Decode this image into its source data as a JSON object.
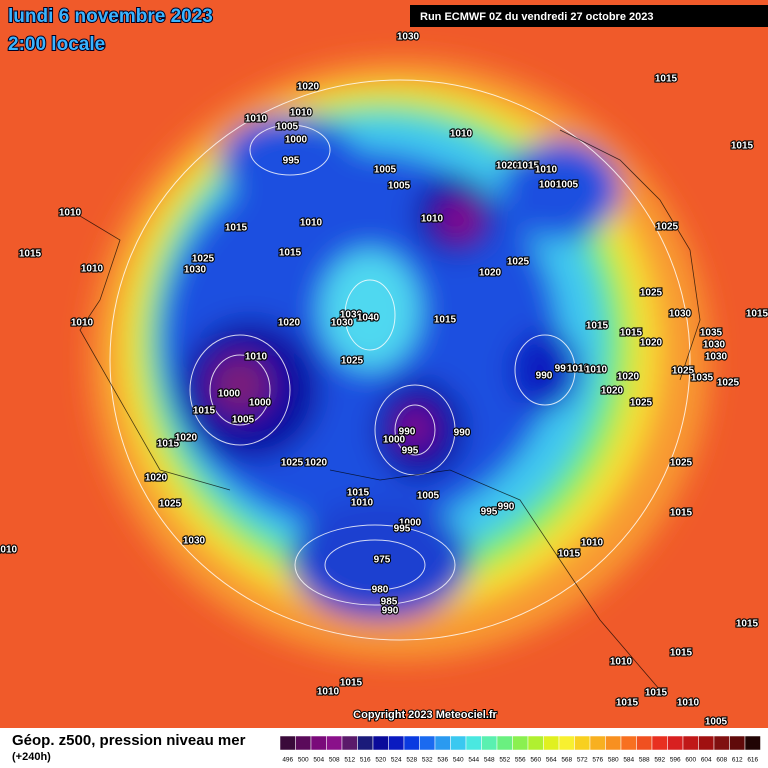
{
  "header": {
    "date": "lundi 6 novembre 2023",
    "time": "2:00 locale",
    "run": "Run ECMWF 0Z du vendredi 27 octobre 2023"
  },
  "copyright": "Copyright 2023 Meteociel.fr",
  "footer": {
    "title": "Géop. z500, pression niveau mer",
    "lead": "(+240h)"
  },
  "isobar_labels": [
    "1020",
    "1030",
    "1015",
    "1015",
    "1010",
    "1010",
    "1005",
    "1000",
    "995",
    "1010",
    "1005",
    "1005",
    "1020",
    "1015",
    "1010",
    "1005",
    "1005",
    "1010",
    "1010",
    "1015",
    "1015",
    "1025",
    "1030",
    "1010",
    "1015",
    "1010",
    "1010",
    "1025",
    "1020",
    "1025",
    "1025",
    "1030",
    "1035",
    "1030",
    "1030",
    "1025",
    "1035",
    "1025",
    "1015",
    "1015",
    "1015",
    "1020",
    "1020",
    "1020",
    "1025",
    "1030",
    "1040",
    "1030",
    "1015",
    "1020",
    "1025",
    "1010",
    "990",
    "995",
    "1010",
    "1010",
    "1000",
    "1000",
    "1015",
    "1005",
    "1015",
    "1020",
    "1020",
    "1025",
    "1020",
    "990",
    "1000",
    "995",
    "990",
    "1025",
    "1015",
    "1010",
    "1005",
    "995",
    "990",
    "1025",
    "1030",
    "1010",
    "1015",
    "1010",
    "1015",
    "1000",
    "995",
    "975",
    "980",
    "985",
    "990",
    "1015",
    "1010",
    "1015",
    "1015",
    "1010",
    "1015",
    "1015",
    "1010",
    "1005"
  ],
  "colorbar": {
    "labels": [
      496,
      500,
      504,
      508,
      512,
      516,
      520,
      524,
      528,
      532,
      536,
      540,
      544,
      548,
      552,
      556,
      560,
      564,
      568,
      572,
      576,
      580,
      584,
      588,
      592,
      596,
      600,
      604,
      608,
      612,
      616
    ],
    "colors": [
      "#3a0a3a",
      "#5a0a5a",
      "#7a0a7a",
      "#8a108a",
      "#5a1a6a",
      "#1a1a7a",
      "#0a0a9a",
      "#0a1ac0",
      "#0a3ae0",
      "#1a6af0",
      "#2a9af0",
      "#3ac8f0",
      "#4ae8e0",
      "#5af0b0",
      "#6af080",
      "#8af050",
      "#b0f030",
      "#e0f020",
      "#f8f030",
      "#f8d020",
      "#f8b020",
      "#f89020",
      "#f87020",
      "#f05020",
      "#e83020",
      "#d82020",
      "#c01818",
      "#a01010",
      "#801010",
      "#600a0a",
      "#200404"
    ]
  }
}
